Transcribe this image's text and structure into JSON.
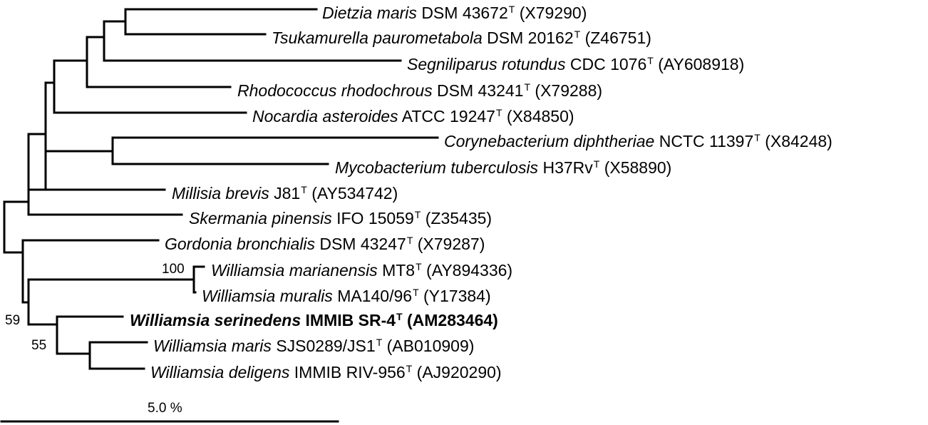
{
  "taxa": [
    {
      "species": "Dietzia maris",
      "strain": "DSM 43672",
      "type_mark": "T",
      "accession": "(X79290)",
      "bold": false
    },
    {
      "species": "Tsukamurella paurometabola",
      "strain": "DSM 20162",
      "type_mark": "T",
      "accession": "(Z46751)",
      "bold": false
    },
    {
      "species": "Segniliparus rotundus",
      "strain": "CDC 1076",
      "type_mark": "T",
      "accession": "(AY608918)",
      "bold": false
    },
    {
      "species": "Rhodococcus rhodochrous",
      "strain": "DSM 43241",
      "type_mark": "T",
      "accession": "(X79288)",
      "bold": false
    },
    {
      "species": "Nocardia asteroides",
      "strain": "ATCC 19247",
      "type_mark": "T",
      "accession": "(X84850)",
      "bold": false
    },
    {
      "species": "Corynebacterium diphtheriae",
      "strain": "NCTC 11397",
      "type_mark": "T",
      "accession": "(X84248)",
      "bold": false
    },
    {
      "species": "Mycobacterium tuberculosis",
      "strain": "H37Rv",
      "type_mark": "T",
      "accession": "(X58890)",
      "bold": false
    },
    {
      "species": "Millisia brevis",
      "strain": "J81",
      "type_mark": "T",
      "accession": "(AY534742)",
      "bold": false
    },
    {
      "species": "Skermania pinensis",
      "strain": "IFO 15059",
      "type_mark": "T",
      "accession": "(Z35435)",
      "bold": false
    },
    {
      "species": "Gordonia bronchialis",
      "strain": "DSM 43247",
      "type_mark": "T",
      "accession": "(X79287)",
      "bold": false
    },
    {
      "species": "Williamsia marianensis",
      "strain": "MT8",
      "type_mark": "T",
      "accession": "(AY894336)",
      "bold": false
    },
    {
      "species": "Williamsia muralis",
      "strain": "MA140/96",
      "type_mark": "T",
      "accession": "(Y17384)",
      "bold": false
    },
    {
      "species": "Williamsia serinedens",
      "strain": "IMMIB SR-4",
      "type_mark": "T",
      "accession": "(AM283464)",
      "bold": true
    },
    {
      "species": "Williamsia maris",
      "strain": "SJS0289/JS1",
      "type_mark": "T",
      "accession": "(AB010909)",
      "bold": false
    },
    {
      "species": "Williamsia deligens",
      "strain": "IMMIB RIV-956",
      "type_mark": "T",
      "accession": "(AJ920290)",
      "bold": false
    }
  ],
  "bootstrap": [
    "100",
    "59",
    "55"
  ],
  "scale_bar": {
    "label": "5.0 %"
  }
}
